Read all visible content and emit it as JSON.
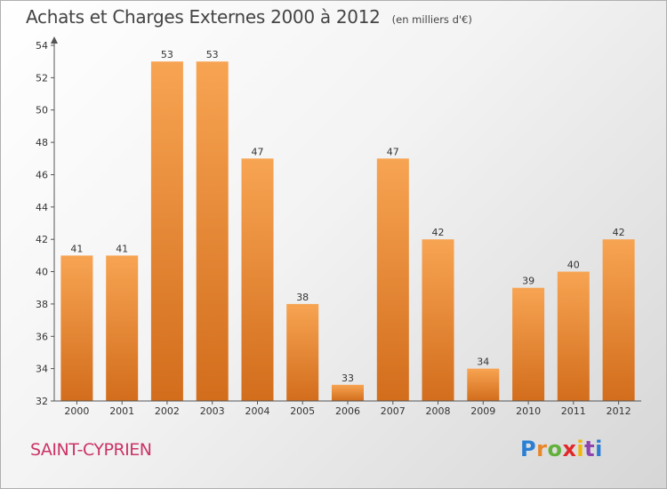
{
  "title": "Achats et Charges Externes 2000 à 2012",
  "unit_label": "(en milliers d'€)",
  "town": "SAINT-CYPRIEN",
  "brand_letters": [
    "P",
    "r",
    "o",
    "x",
    "i",
    "t",
    "i"
  ],
  "colors": {
    "bar_light": "#f7a452",
    "bar_dark": "#d26d1c",
    "axis": "#555555",
    "town": "#cc3366"
  },
  "chart_data": {
    "type": "bar",
    "title": "Achats et Charges Externes 2000 à 2012",
    "unit": "(en milliers d'€)",
    "categories": [
      "2000",
      "2001",
      "2002",
      "2003",
      "2004",
      "2005",
      "2006",
      "2007",
      "2008",
      "2009",
      "2010",
      "2011",
      "2012"
    ],
    "values": [
      41,
      41,
      53,
      53,
      47,
      38,
      33,
      47,
      42,
      34,
      39,
      40,
      42
    ],
    "ylim": [
      32,
      54
    ],
    "yticks": [
      32,
      34,
      36,
      38,
      40,
      42,
      44,
      46,
      48,
      50,
      52,
      54
    ],
    "grid": false,
    "legend": "none",
    "data_labels": true
  }
}
